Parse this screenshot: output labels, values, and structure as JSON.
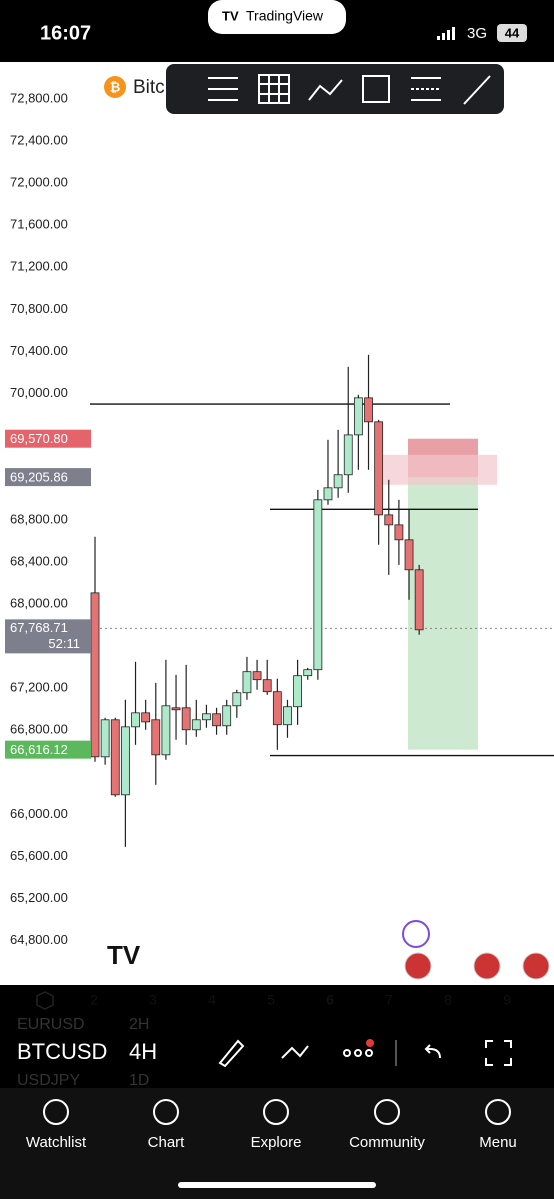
{
  "status_bar": {
    "time": "16:07",
    "network": "3G",
    "battery": "44"
  },
  "app_badge": "TradingView",
  "symbol_name": "Bitc",
  "chart_data": {
    "type": "candlestick",
    "ylim": [
      64380,
      73150
    ],
    "yticks": [
      {
        "value": 72800,
        "label": "72,800.00"
      },
      {
        "value": 72400,
        "label": "72,400.00"
      },
      {
        "value": 72000,
        "label": "72,000.00"
      },
      {
        "value": 71600,
        "label": "71,600.00"
      },
      {
        "value": 71200,
        "label": "71,200.00"
      },
      {
        "value": 70800,
        "label": "70,800.00"
      },
      {
        "value": 70400,
        "label": "70,400.00"
      },
      {
        "value": 70000,
        "label": "70,000.00"
      },
      {
        "value": 68800,
        "label": "68,800.00"
      },
      {
        "value": 68400,
        "label": "68,400.00"
      },
      {
        "value": 68000,
        "label": "68,000.00"
      },
      {
        "value": 67200,
        "label": "67,200.00"
      },
      {
        "value": 66800,
        "label": "66,800.00"
      },
      {
        "value": 66000,
        "label": "66,000.00"
      },
      {
        "value": 65600,
        "label": "65,600.00"
      },
      {
        "value": 65200,
        "label": "65,200.00"
      },
      {
        "value": 64800,
        "label": "64,800.00"
      }
    ],
    "x_tick_labels": [
      "2",
      "3",
      "4",
      "5",
      "6",
      "7",
      "8",
      "9"
    ],
    "open": [
      68106,
      66548,
      66900,
      66187,
      66833,
      66966,
      66900,
      66567,
      67014,
      67014,
      66805,
      66900,
      66957,
      66843,
      67033,
      67157,
      67357,
      67281,
      67167,
      66853,
      67024,
      67319,
      67376,
      68990,
      69104,
      69228,
      69607,
      69959,
      69731,
      68847,
      68752,
      68610,
      68325
    ],
    "high": [
      68639,
      66919,
      66919,
      67090,
      67451,
      67090,
      67251,
      67470,
      67327,
      67422,
      67090,
      67043,
      67014,
      67090,
      67185,
      67498,
      67470,
      67470,
      67290,
      67090,
      67470,
      67394,
      69085,
      69560,
      69655,
      70254,
      69988,
      70368,
      69750,
      69180,
      68990,
      68895,
      68372
    ],
    "low": [
      66501,
      66473,
      66168,
      65693,
      66662,
      66805,
      66282,
      66520,
      66710,
      66662,
      66738,
      66824,
      66758,
      66758,
      66919,
      67090,
      67185,
      67137,
      66615,
      66729,
      66852,
      67280,
      67280,
      68943,
      69010,
      69057,
      69275,
      69275,
      68563,
      68277,
      68372,
      68040,
      67708
    ],
    "close": [
      66548,
      66900,
      66187,
      66833,
      66966,
      66880,
      66567,
      67033,
      66995,
      66805,
      66900,
      66957,
      66843,
      67033,
      67157,
      67357,
      67281,
      67167,
      66853,
      67024,
      67319,
      67376,
      68990,
      69104,
      69228,
      69607,
      69959,
      69731,
      68847,
      68752,
      68610,
      68325,
      67755
    ],
    "up_color": "#aee9cb",
    "down_color": "#e57373",
    "levels": [
      69900,
      68900,
      66560
    ],
    "zone": [
      69417,
      69133
    ],
    "position": {
      "entry": 69205.86,
      "stop": 69570.8,
      "target": 66616.12
    },
    "price_labels": [
      {
        "value": 69570.8,
        "label": "69,570.80",
        "color": "#e5636b"
      },
      {
        "value": 69205.86,
        "label": "69,205.86",
        "color": "#7d7f8c"
      },
      {
        "value": 66616.12,
        "label": "66,616.12",
        "color": "#5cb85c"
      }
    ],
    "current_price": {
      "value": 67768.71,
      "label": "67,768.71",
      "countdown": "52:11"
    }
  },
  "symbols": [
    {
      "name": "EURUSD",
      "interval": "2H"
    },
    {
      "name": "BTCUSD",
      "interval": "4H"
    },
    {
      "name": "USDJPY",
      "interval": "1D"
    }
  ],
  "nav": [
    "Watchlist",
    "Chart",
    "Explore",
    "Community",
    "Menu"
  ]
}
